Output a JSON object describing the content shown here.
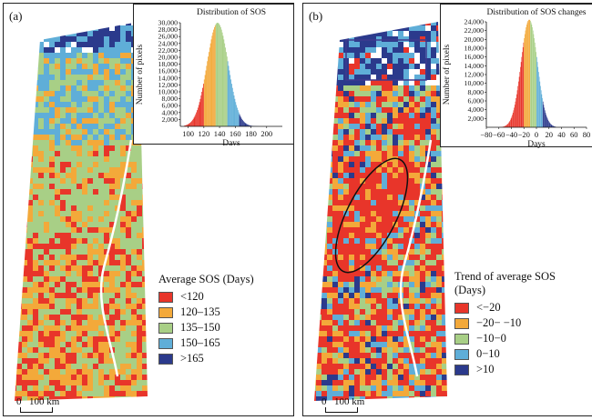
{
  "colors": {
    "red": "#e8352a",
    "orange": "#f3a93a",
    "lightgreen": "#a8cf86",
    "lightblue": "#5faed8",
    "darkblue": "#2b3a8c",
    "outline": "#3e3a8e"
  },
  "panel_a": {
    "label": "(a)",
    "legend_title": "Average SOS (Days)",
    "legend": [
      {
        "label": "<120",
        "color": "#e8352a"
      },
      {
        "label": "120–135",
        "color": "#f3a93a"
      },
      {
        "label": "135–150",
        "color": "#a8cf86"
      },
      {
        "label": "150–165",
        "color": "#5faed8"
      },
      {
        "label": ">165",
        "color": "#2b3a8c"
      }
    ],
    "scale_zero": "0",
    "scale_label": "100 km"
  },
  "panel_b": {
    "label": "(b)",
    "legend_title_line1": "Trend of average SOS",
    "legend_title_line2": "(Days)",
    "legend": [
      {
        "label": "<−20",
        "color": "#e8352a"
      },
      {
        "label": "−20− −10",
        "color": "#f3a93a"
      },
      {
        "label": "−10−0",
        "color": "#a8cf86"
      },
      {
        "label": "0−10",
        "color": "#5faed8"
      },
      {
        "label": ">10",
        "color": "#2b3a8c"
      }
    ],
    "scale_zero": "0",
    "scale_label": "100 km"
  },
  "chart_data": [
    {
      "type": "bar",
      "title": "Distribution of SOS",
      "xlabel": "Days",
      "ylabel": "Number of pixels",
      "xlim": [
        90,
        220
      ],
      "ylim": [
        0,
        30000
      ],
      "xticks": [
        100,
        120,
        140,
        160,
        180,
        200
      ],
      "yticks": [
        2000,
        4000,
        6000,
        8000,
        10000,
        12000,
        14000,
        16000,
        18000,
        20000,
        22000,
        24000,
        26000,
        28000,
        30000
      ],
      "ytick_labels": [
        "2,000",
        "4,000",
        "6,000",
        "8,000",
        "10,000",
        "12,000",
        "14,000",
        "16,000",
        "18,000",
        "20,000",
        "22,000",
        "24,000",
        "26,000",
        "28,000",
        "30,000"
      ],
      "distribution": {
        "mean": 137,
        "sd": 13.5,
        "peak": 30000,
        "min": 95,
        "max": 190
      },
      "class_breaks": [
        120,
        135,
        150,
        165
      ],
      "class_colors": [
        "#e8352a",
        "#f3a93a",
        "#a8cf86",
        "#5faed8",
        "#2b3a8c"
      ]
    },
    {
      "type": "bar",
      "title": "Distribution of SOS changes",
      "xlabel": "Days",
      "ylabel": "Number of pixels",
      "xlim": [
        -80,
        80
      ],
      "ylim": [
        0,
        24000
      ],
      "xticks": [
        -80,
        -60,
        -40,
        -20,
        0,
        20,
        40,
        60,
        80
      ],
      "xtick_labels": [
        "−80",
        "−60",
        "−40",
        "−20",
        "0",
        "20",
        "40",
        "60",
        "80"
      ],
      "yticks": [
        2000,
        4000,
        6000,
        8000,
        10000,
        12000,
        14000,
        16000,
        18000,
        20000,
        22000,
        24000
      ],
      "ytick_labels": [
        "2,000",
        "4,000",
        "6,000",
        "8,000",
        "10,000",
        "12,000",
        "14,000",
        "16,000",
        "18,000",
        "20,000",
        "22,000",
        "24,000"
      ],
      "distribution": {
        "mean": -12,
        "sd": 13.0,
        "peak": 24500,
        "min": -60,
        "max": 30
      },
      "class_breaks": [
        -20,
        -10,
        0,
        10
      ],
      "class_colors": [
        "#e8352a",
        "#f3a93a",
        "#a8cf86",
        "#5faed8",
        "#2b3a8c"
      ]
    }
  ]
}
